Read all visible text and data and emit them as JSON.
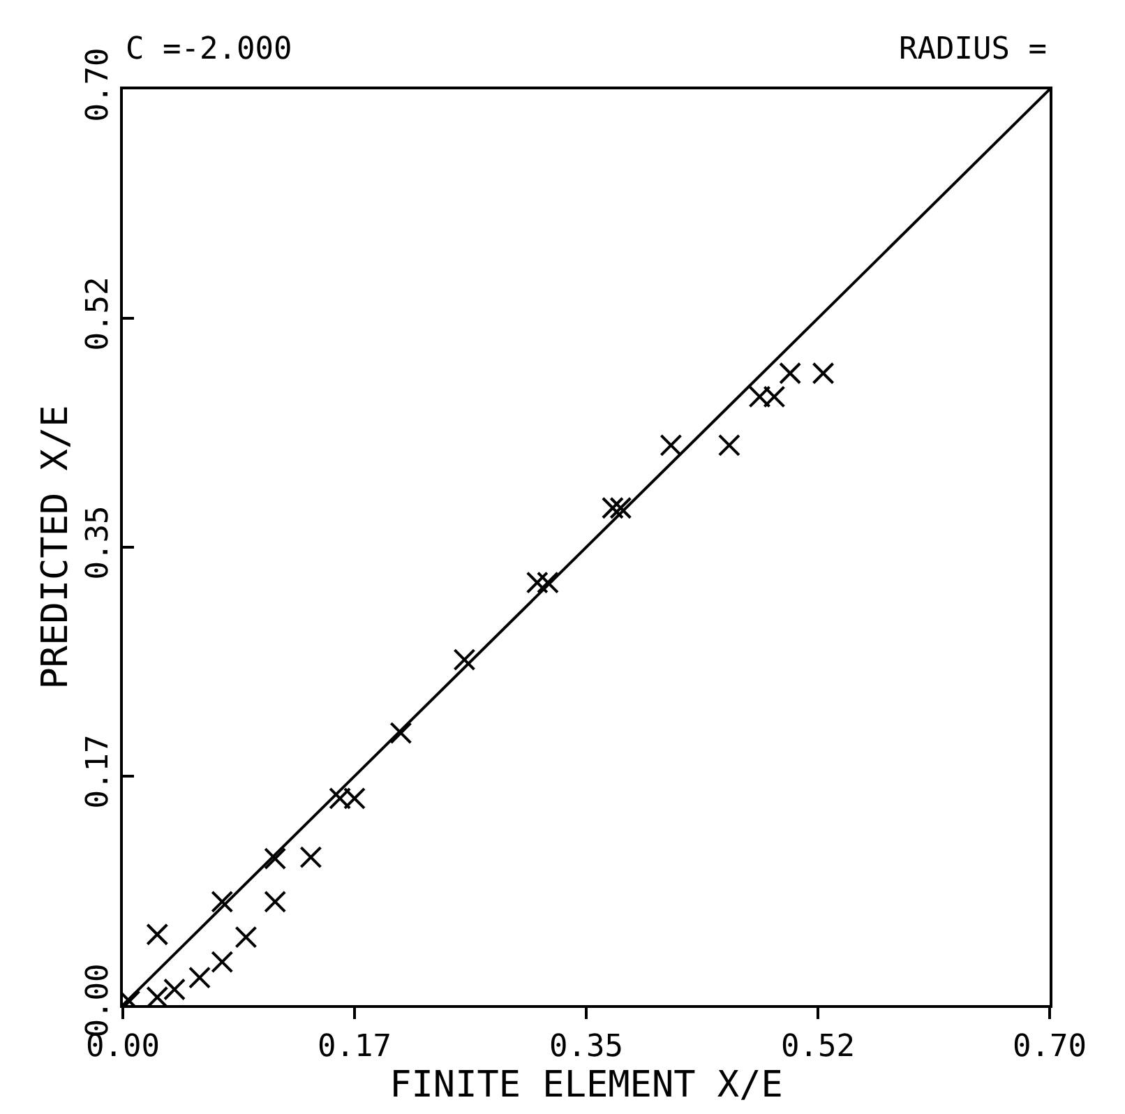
{
  "chart_data": {
    "type": "scatter",
    "xlabel": "FINITE ELEMENT X/E",
    "ylabel": "PREDICTED X/E",
    "annotations": [
      "C =-2.000",
      "RADIUS ="
    ],
    "marker": "cross",
    "grid": false,
    "xlim": [
      0,
      0.7
    ],
    "ylim": [
      0,
      0.7
    ],
    "xticks": [
      {
        "value": 0,
        "label": "0.00"
      },
      {
        "value": 0.175,
        "label": "0.17"
      },
      {
        "value": 0.35,
        "label": "0.35"
      },
      {
        "value": 0.525,
        "label": "0.52"
      },
      {
        "value": 0.7,
        "label": "0.70"
      }
    ],
    "yticks": [
      {
        "value": 0,
        "label": "0.00"
      },
      {
        "value": 0.175,
        "label": "0.17"
      },
      {
        "value": 0.35,
        "label": "0.35"
      },
      {
        "value": 0.525,
        "label": "0.52"
      },
      {
        "value": 0.7,
        "label": "0.70"
      }
    ],
    "series": [
      {
        "color": "#000000",
        "x": [
          0.005,
          0.026,
          0.026,
          0.039,
          0.058,
          0.075,
          0.075,
          0.093,
          0.115,
          0.115,
          0.142,
          0.164,
          0.175,
          0.21,
          0.258,
          0.313,
          0.321,
          0.37,
          0.376,
          0.414,
          0.458,
          0.481,
          0.492,
          0.504,
          0.529
        ],
        "values": [
          0.003,
          0.054,
          0.006,
          0.012,
          0.021,
          0.079,
          0.033,
          0.052,
          0.079,
          0.112,
          0.113,
          0.158,
          0.158,
          0.208,
          0.264,
          0.323,
          0.323,
          0.38,
          0.38,
          0.428,
          0.428,
          0.465,
          0.465,
          0.483,
          0.483
        ]
      },
      {
        "type": "line",
        "color": "#000000",
        "x": [
          0,
          0.7
        ],
        "values": [
          0,
          0.7
        ],
        "line_style": "solid",
        "marker": "none"
      }
    ]
  }
}
